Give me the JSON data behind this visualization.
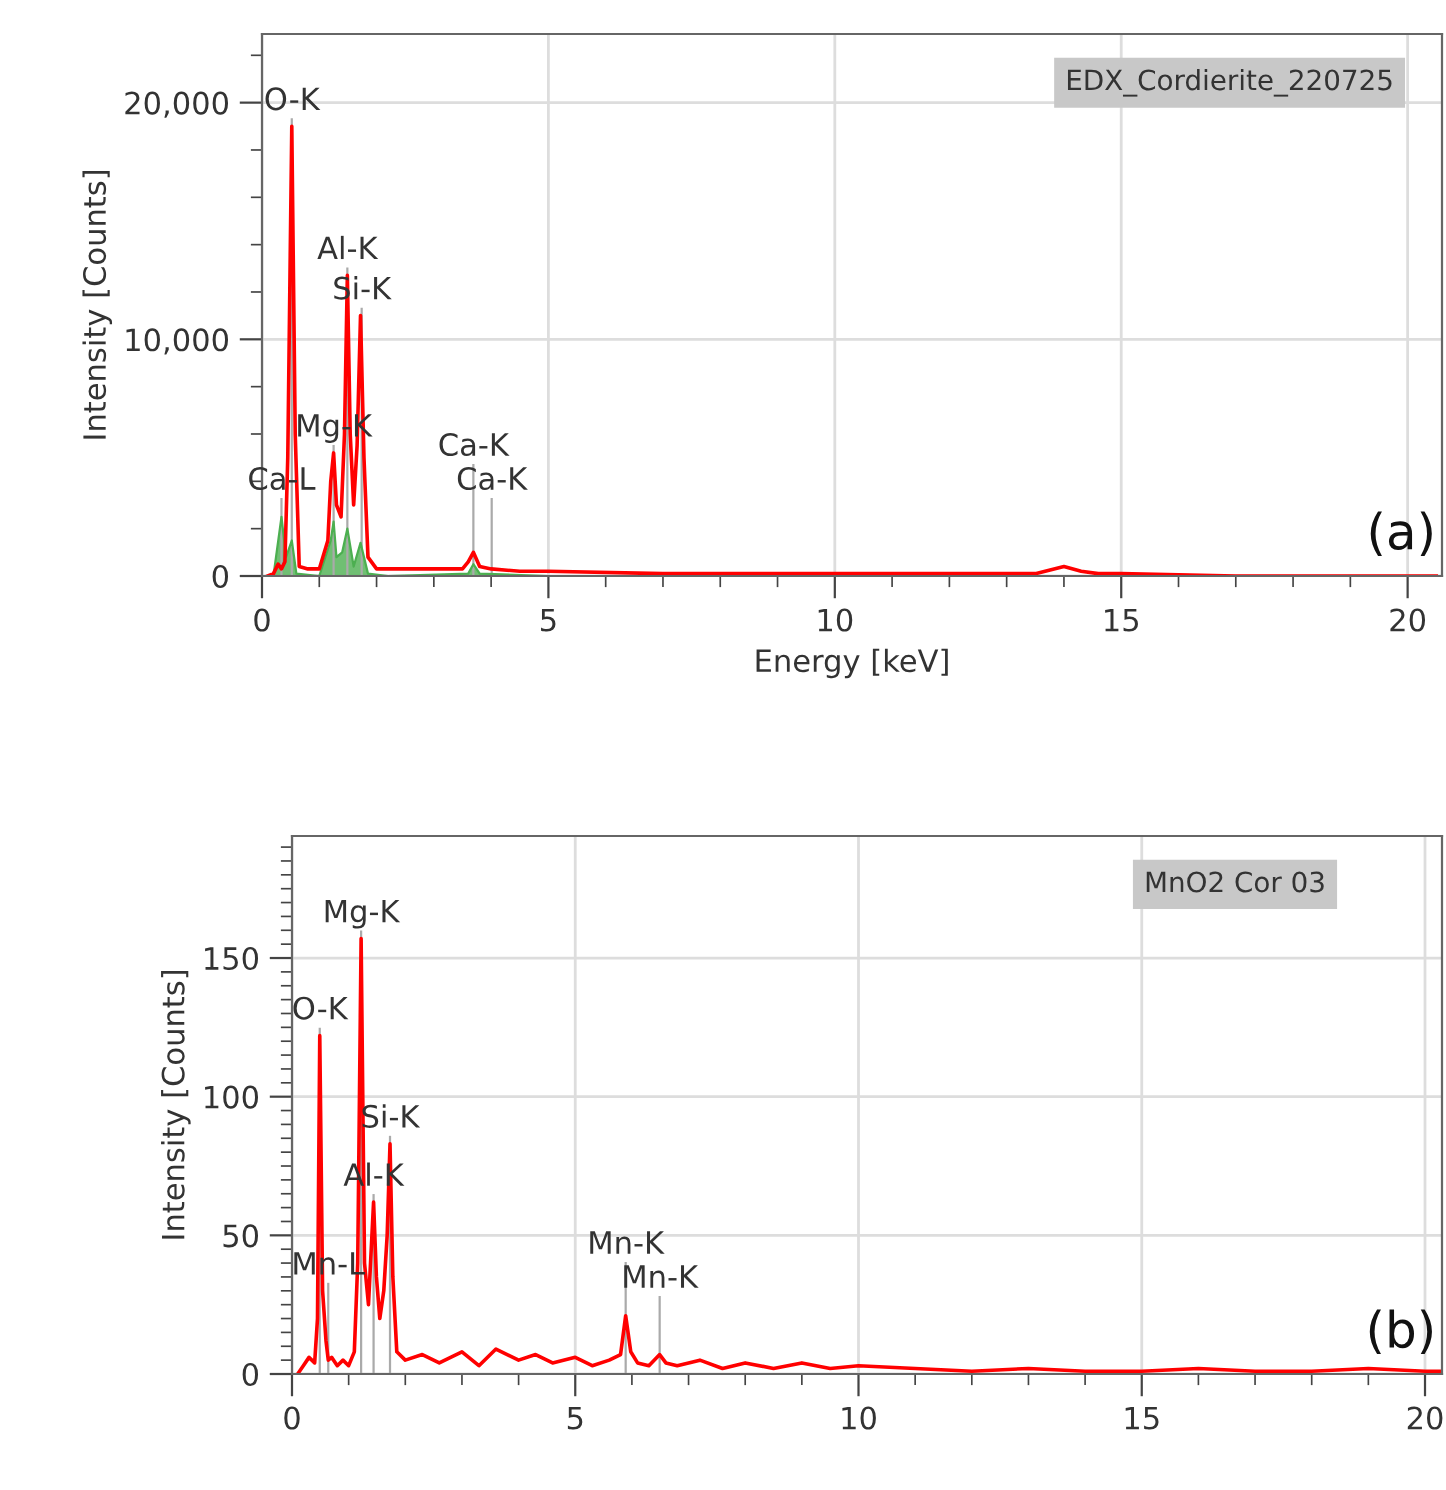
{
  "chart_data": [
    {
      "type": "line",
      "xlabel": "Energy [keV]",
      "ylabel": "Intensity [Counts]",
      "xlim": [
        0,
        20.6
      ],
      "ylim": [
        0,
        22900
      ],
      "xticks": [
        0,
        {
          "value": 1,
          "label": null
        },
        {
          "value": 2,
          "label": null
        },
        {
          "value": 3,
          "label": null
        },
        {
          "value": 4,
          "label": null
        },
        5,
        {
          "value": 6,
          "label": null
        },
        {
          "value": 7,
          "label": null
        },
        {
          "value": 8,
          "label": null
        },
        {
          "value": 9,
          "label": null
        },
        10,
        {
          "value": 11,
          "label": null
        },
        {
          "value": 12,
          "label": null
        },
        {
          "value": 13,
          "label": null
        },
        {
          "value": 14,
          "label": null
        },
        15,
        {
          "value": 16,
          "label": null
        },
        {
          "value": 17,
          "label": null
        },
        {
          "value": 18,
          "label": null
        },
        {
          "value": 19,
          "label": null
        },
        20
      ],
      "yticks": [
        0,
        {
          "value": 2000,
          "label": null
        },
        {
          "value": 4000,
          "label": null
        },
        {
          "value": 6000,
          "label": null
        },
        {
          "value": 8000,
          "label": null
        },
        {
          "value": 10000,
          "label": "10,000"
        },
        {
          "value": 12000,
          "label": null
        },
        {
          "value": 14000,
          "label": null
        },
        {
          "value": 16000,
          "label": null
        },
        {
          "value": 18000,
          "label": null
        },
        {
          "value": 20000,
          "label": "20,000"
        },
        {
          "value": 22000,
          "label": null
        }
      ],
      "grid": true,
      "series": [
        {
          "type": "area",
          "color": "#4caf50",
          "x": [
            0.2,
            0.34,
            0.42,
            0.52,
            0.6,
            1.0,
            1.2,
            1.25,
            1.3,
            1.4,
            1.49,
            1.6,
            1.72,
            1.85,
            2.2,
            3.6,
            3.69,
            3.8,
            5,
            20.5
          ],
          "values": [
            0,
            2500,
            800,
            1500,
            100,
            0,
            1500,
            2300,
            800,
            1000,
            2000,
            400,
            1400,
            100,
            0,
            100,
            500,
            100,
            0,
            0
          ]
        },
        {
          "color": "#ff0000",
          "x": [
            0.1,
            0.2,
            0.28,
            0.34,
            0.4,
            0.45,
            0.52,
            0.58,
            0.65,
            0.8,
            1.0,
            1.15,
            1.2,
            1.25,
            1.3,
            1.38,
            1.44,
            1.49,
            1.54,
            1.6,
            1.66,
            1.72,
            1.78,
            1.85,
            2.0,
            2.5,
            3.0,
            3.5,
            3.6,
            3.69,
            3.8,
            4.0,
            4.5,
            5,
            7,
            10,
            13.5,
            14.0,
            14.3,
            14.6,
            15,
            17,
            20.5
          ],
          "values": [
            0,
            100,
            500,
            300,
            600,
            5000,
            19000,
            6000,
            400,
            300,
            300,
            1500,
            4000,
            5200,
            3000,
            2500,
            6000,
            12700,
            6000,
            3000,
            5500,
            11000,
            5000,
            800,
            300,
            300,
            300,
            300,
            600,
            1000,
            400,
            300,
            200,
            200,
            100,
            100,
            100,
            400,
            200,
            100,
            100,
            0,
            0
          ]
        }
      ],
      "ref_lines": [
        {
          "axis": "x",
          "value": 0.52,
          "label": "O-K",
          "color": "#aaaaaa"
        },
        {
          "axis": "x",
          "value": 1.49,
          "label": "Al-K",
          "color": "#aaaaaa"
        },
        {
          "axis": "x",
          "value": 1.25,
          "label": "Mg-K",
          "color": "#aaaaaa"
        },
        {
          "axis": "x",
          "value": 1.74,
          "label": "Si-K",
          "color": "#aaaaaa"
        },
        {
          "axis": "x",
          "value": 4.01,
          "label": "Ca-K",
          "color": "#aaaaaa"
        },
        {
          "axis": "x",
          "value": 3.69,
          "label": "Ca-K",
          "color": "#aaaaaa"
        },
        {
          "axis": "x",
          "value": 0.34,
          "label": "Ca-L",
          "color": "#aaaaaa"
        }
      ],
      "annotations": [
        "EDX_Cordierite_220725",
        "(a)"
      ]
    },
    {
      "type": "line",
      "ylabel": "Intensity [Counts]",
      "xlim": [
        0,
        20.3
      ],
      "ylim": [
        0,
        194
      ],
      "xticks": [
        0,
        {
          "value": 1,
          "label": null
        },
        {
          "value": 2,
          "label": null
        },
        {
          "value": 3,
          "label": null
        },
        {
          "value": 4,
          "label": null
        },
        5,
        {
          "value": 6,
          "label": null
        },
        {
          "value": 7,
          "label": null
        },
        {
          "value": 8,
          "label": null
        },
        {
          "value": 9,
          "label": null
        },
        10,
        {
          "value": 11,
          "label": null
        },
        {
          "value": 12,
          "label": null
        },
        {
          "value": 13,
          "label": null
        },
        {
          "value": 14,
          "label": null
        },
        15,
        {
          "value": 16,
          "label": null
        },
        {
          "value": 17,
          "label": null
        },
        {
          "value": 18,
          "label": null
        },
        {
          "value": 19,
          "label": null
        },
        20
      ],
      "yticks": [
        0,
        {
          "value": 5,
          "label": null
        },
        {
          "value": 10,
          "label": null
        },
        {
          "value": 15,
          "label": null
        },
        {
          "value": 20,
          "label": null
        },
        {
          "value": 25,
          "label": null
        },
        {
          "value": 30,
          "label": null
        },
        {
          "value": 35,
          "label": null
        },
        {
          "value": 40,
          "label": null
        },
        {
          "value": 45,
          "label": null
        },
        50,
        {
          "value": 55,
          "label": null
        },
        {
          "value": 60,
          "label": null
        },
        {
          "value": 65,
          "label": null
        },
        {
          "value": 70,
          "label": null
        },
        {
          "value": 75,
          "label": null
        },
        {
          "value": 80,
          "label": null
        },
        {
          "value": 85,
          "label": null
        },
        {
          "value": 90,
          "label": null
        },
        {
          "value": 95,
          "label": null
        },
        100,
        {
          "value": 105,
          "label": null
        },
        {
          "value": 110,
          "label": null
        },
        {
          "value": 115,
          "label": null
        },
        {
          "value": 120,
          "label": null
        },
        {
          "value": 125,
          "label": null
        },
        {
          "value": 130,
          "label": null
        },
        {
          "value": 135,
          "label": null
        },
        {
          "value": 140,
          "label": null
        },
        {
          "value": 145,
          "label": null
        },
        150,
        {
          "value": 155,
          "label": null
        },
        {
          "value": 160,
          "label": null
        },
        {
          "value": 165,
          "label": null
        },
        {
          "value": 170,
          "label": null
        },
        {
          "value": 175,
          "label": null
        },
        {
          "value": 180,
          "label": null
        },
        {
          "value": 185,
          "label": null
        },
        {
          "value": 190,
          "label": null
        }
      ],
      "grid": true,
      "series": [
        {
          "color": "#ff0000",
          "x": [
            0.1,
            0.2,
            0.3,
            0.4,
            0.45,
            0.49,
            0.54,
            0.6,
            0.64,
            0.7,
            0.8,
            0.9,
            1.0,
            1.1,
            1.16,
            1.22,
            1.28,
            1.35,
            1.44,
            1.49,
            1.55,
            1.62,
            1.68,
            1.73,
            1.78,
            1.85,
            2.0,
            2.3,
            2.6,
            3.0,
            3.3,
            3.6,
            4.0,
            4.3,
            4.6,
            5.0,
            5.3,
            5.6,
            5.8,
            5.89,
            5.98,
            6.1,
            6.3,
            6.49,
            6.6,
            6.8,
            7.2,
            7.6,
            8,
            8.5,
            9,
            9.5,
            10,
            11,
            12,
            13,
            14,
            15,
            16,
            17,
            18,
            19,
            20,
            20.3
          ],
          "values": [
            0,
            3,
            6,
            4,
            20,
            122,
            30,
            12,
            5,
            6,
            3,
            5,
            3,
            8,
            40,
            157,
            40,
            25,
            62,
            35,
            20,
            30,
            50,
            83,
            35,
            8,
            5,
            7,
            4,
            8,
            3,
            9,
            5,
            7,
            4,
            6,
            3,
            5,
            7,
            21,
            8,
            4,
            3,
            7,
            4,
            3,
            5,
            2,
            4,
            2,
            4,
            2,
            3,
            2,
            1,
            2,
            1,
            1,
            2,
            1,
            1,
            2,
            1,
            1
          ]
        }
      ],
      "ref_lines": [
        {
          "axis": "x",
          "value": 1.22,
          "label": "Mg-K",
          "color": "#aaaaaa"
        },
        {
          "axis": "x",
          "value": 0.49,
          "label": "O-K",
          "color": "#aaaaaa"
        },
        {
          "axis": "x",
          "value": 1.73,
          "label": "Si-K",
          "color": "#aaaaaa"
        },
        {
          "axis": "x",
          "value": 0.64,
          "label": "Mn-L",
          "color": "#aaaaaa"
        },
        {
          "axis": "x",
          "value": 1.44,
          "label": "Al-K",
          "color": "#aaaaaa"
        },
        {
          "axis": "x",
          "value": 6.49,
          "label": "Mn-K",
          "color": "#aaaaaa"
        },
        {
          "axis": "x",
          "value": 5.89,
          "label": "Mn-K",
          "color": "#aaaaaa"
        }
      ],
      "annotations": [
        "MnO2 Cor 03",
        "(b)"
      ]
    }
  ]
}
